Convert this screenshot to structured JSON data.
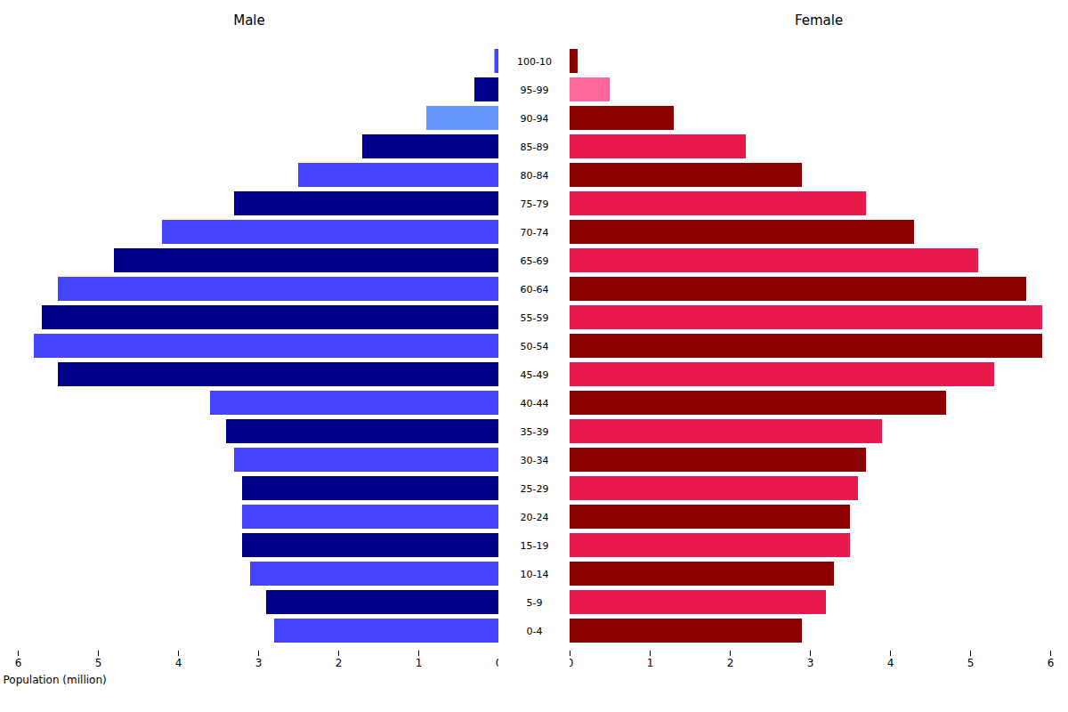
{
  "chart_data": {
    "type": "bar",
    "orientation": "horizontal",
    "categories": [
      "0-4",
      "5-9",
      "10-14",
      "15-19",
      "20-24",
      "25-29",
      "30-34",
      "35-39",
      "40-44",
      "45-49",
      "50-54",
      "55-59",
      "60-64",
      "65-69",
      "70-74",
      "75-79",
      "80-84",
      "85-89",
      "90-94",
      "95-99",
      "100-10"
    ],
    "series": [
      {
        "name": "Male",
        "values": [
          2.8,
          2.9,
          3.1,
          3.2,
          3.2,
          3.2,
          3.3,
          3.4,
          3.6,
          5.5,
          5.8,
          5.7,
          5.5,
          4.8,
          4.2,
          3.3,
          2.5,
          1.7,
          0.9,
          0.3,
          0.05
        ],
        "colors": [
          "#4444FF",
          "#00008B",
          "#4444FF",
          "#00008B",
          "#4444FF",
          "#00008B",
          "#4444FF",
          "#00008B",
          "#4444FF",
          "#00008B",
          "#4444FF",
          "#00008B",
          "#4444FF",
          "#00008B",
          "#4444FF",
          "#00008B",
          "#4444FF",
          "#00008B",
          "#6699FF",
          "#00008B",
          "#4444FF"
        ]
      },
      {
        "name": "Female",
        "values": [
          2.9,
          3.2,
          3.3,
          3.5,
          3.5,
          3.6,
          3.7,
          3.9,
          4.7,
          5.3,
          5.9,
          5.9,
          5.7,
          5.1,
          4.3,
          3.7,
          2.9,
          2.2,
          1.3,
          0.5,
          0.1
        ],
        "colors": [
          "#8B0000",
          "#E8194B",
          "#8B0000",
          "#E8194B",
          "#8B0000",
          "#E8194B",
          "#8B0000",
          "#E8194B",
          "#8B0000",
          "#E8194B",
          "#8B0000",
          "#E8194B",
          "#8B0000",
          "#E8194B",
          "#8B0000",
          "#E8194B",
          "#8B0000",
          "#E8194B",
          "#8B0000",
          "#FF6699",
          "#8B0000"
        ]
      }
    ],
    "xlabel": "Population (million)",
    "xlim": [
      0,
      6
    ],
    "xticks": [
      0,
      1,
      2,
      3,
      4,
      5,
      6
    ]
  }
}
